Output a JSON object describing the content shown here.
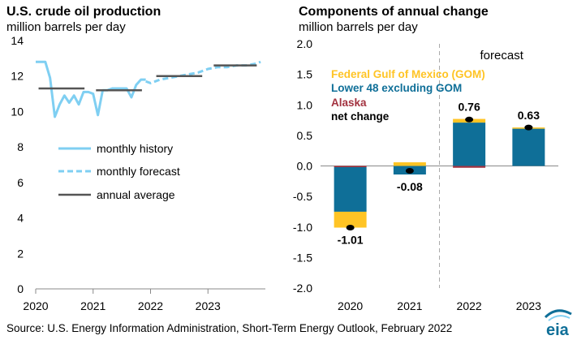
{
  "left_chart": {
    "title": "U.S. crude oil production",
    "subtitle": "million barrels per day"
  },
  "right_chart": {
    "title": "Components of annual change",
    "subtitle": "million barrels per day"
  },
  "source": "Source: U.S. Energy Information Administration, Short-Term Energy Outlook, February 2022",
  "logo_text": "eia",
  "colors": {
    "history": "#7fcff2",
    "forecast": "#7fcff2",
    "annual": "#555555",
    "gom": "#ffc425",
    "lower48": "#0f6f98",
    "alaska": "#a33340",
    "alaska_label": "#a33340",
    "gom_label": "#ffc425",
    "lower48_label": "#0f6f98"
  },
  "chart_data": [
    {
      "type": "line",
      "title": "U.S. crude oil production",
      "ylabel": "million barrels per day",
      "ylim": [
        0,
        14
      ],
      "yticks": [
        "0",
        "2",
        "4",
        "6",
        "8",
        "10",
        "12",
        "14"
      ],
      "xlim": [
        2020,
        2024
      ],
      "xticks": [
        "2020",
        "2021",
        "2022",
        "2023"
      ],
      "legend": [
        "monthly history",
        "monthly forecast",
        "annual average"
      ],
      "legend_position": "left-middle",
      "series": [
        {
          "name": "monthly history",
          "style": "solid",
          "x": [
            2020.0,
            2020.083,
            2020.167,
            2020.25,
            2020.333,
            2020.417,
            2020.5,
            2020.583,
            2020.667,
            2020.75,
            2020.833,
            2020.917,
            2021.0,
            2021.083,
            2021.167,
            2021.25,
            2021.333,
            2021.417,
            2021.5,
            2021.583,
            2021.667,
            2021.75,
            2021.833,
            2021.917
          ],
          "y": [
            12.8,
            12.8,
            12.8,
            11.9,
            9.7,
            10.4,
            10.9,
            10.5,
            10.9,
            10.4,
            11.1,
            11.1,
            11.0,
            9.8,
            11.2,
            11.2,
            11.3,
            11.3,
            11.3,
            11.3,
            10.8,
            11.5,
            11.8,
            11.8
          ]
        },
        {
          "name": "monthly forecast",
          "style": "dashed",
          "x": [
            2021.917,
            2022.0,
            2022.167,
            2022.333,
            2022.5,
            2022.667,
            2022.833,
            2023.0,
            2023.167,
            2023.333,
            2023.5,
            2023.667,
            2023.833,
            2023.917
          ],
          "y": [
            11.7,
            11.6,
            11.8,
            11.9,
            12.0,
            12.1,
            12.2,
            12.4,
            12.5,
            12.5,
            12.6,
            12.6,
            12.7,
            12.8
          ]
        },
        {
          "name": "annual average",
          "style": "step",
          "segments": [
            {
              "x0": 2020.05,
              "x1": 2020.85,
              "y": 11.3
            },
            {
              "x0": 2021.05,
              "x1": 2021.85,
              "y": 11.2
            },
            {
              "x0": 2022.1,
              "x1": 2022.9,
              "y": 12.0
            },
            {
              "x0": 2023.1,
              "x1": 2023.85,
              "y": 12.6
            }
          ]
        }
      ]
    },
    {
      "type": "bar",
      "title": "Components of annual change",
      "ylabel": "million barrels per day",
      "ylim": [
        -2.0,
        2.0
      ],
      "yticks": [
        "2.0",
        "1.5",
        "1.0",
        "0.5",
        "0.0",
        "-0.5",
        "-1.0",
        "-1.5",
        "-2.0"
      ],
      "categories": [
        "2020",
        "2021",
        "2022",
        "2023"
      ],
      "forecast_label": "forecast",
      "forecast_start_after": "2021",
      "stacked": true,
      "legend_position": "top-left",
      "series": [
        {
          "name": "Federal Gulf  of Mexico (GOM)",
          "values": [
            -0.26,
            0.06,
            0.06,
            0.02
          ]
        },
        {
          "name": "Lower 48 excluding GOM",
          "values": [
            -0.73,
            -0.14,
            0.71,
            0.61
          ]
        },
        {
          "name": "Alaska",
          "values": [
            -0.02,
            0.0,
            -0.03,
            0.0
          ]
        }
      ],
      "net_change": {
        "name": "net change",
        "values": [
          -1.01,
          -0.08,
          0.76,
          0.63
        ],
        "labels": [
          "-1.01",
          "-0.08",
          "0.76",
          "0.63"
        ]
      }
    }
  ]
}
